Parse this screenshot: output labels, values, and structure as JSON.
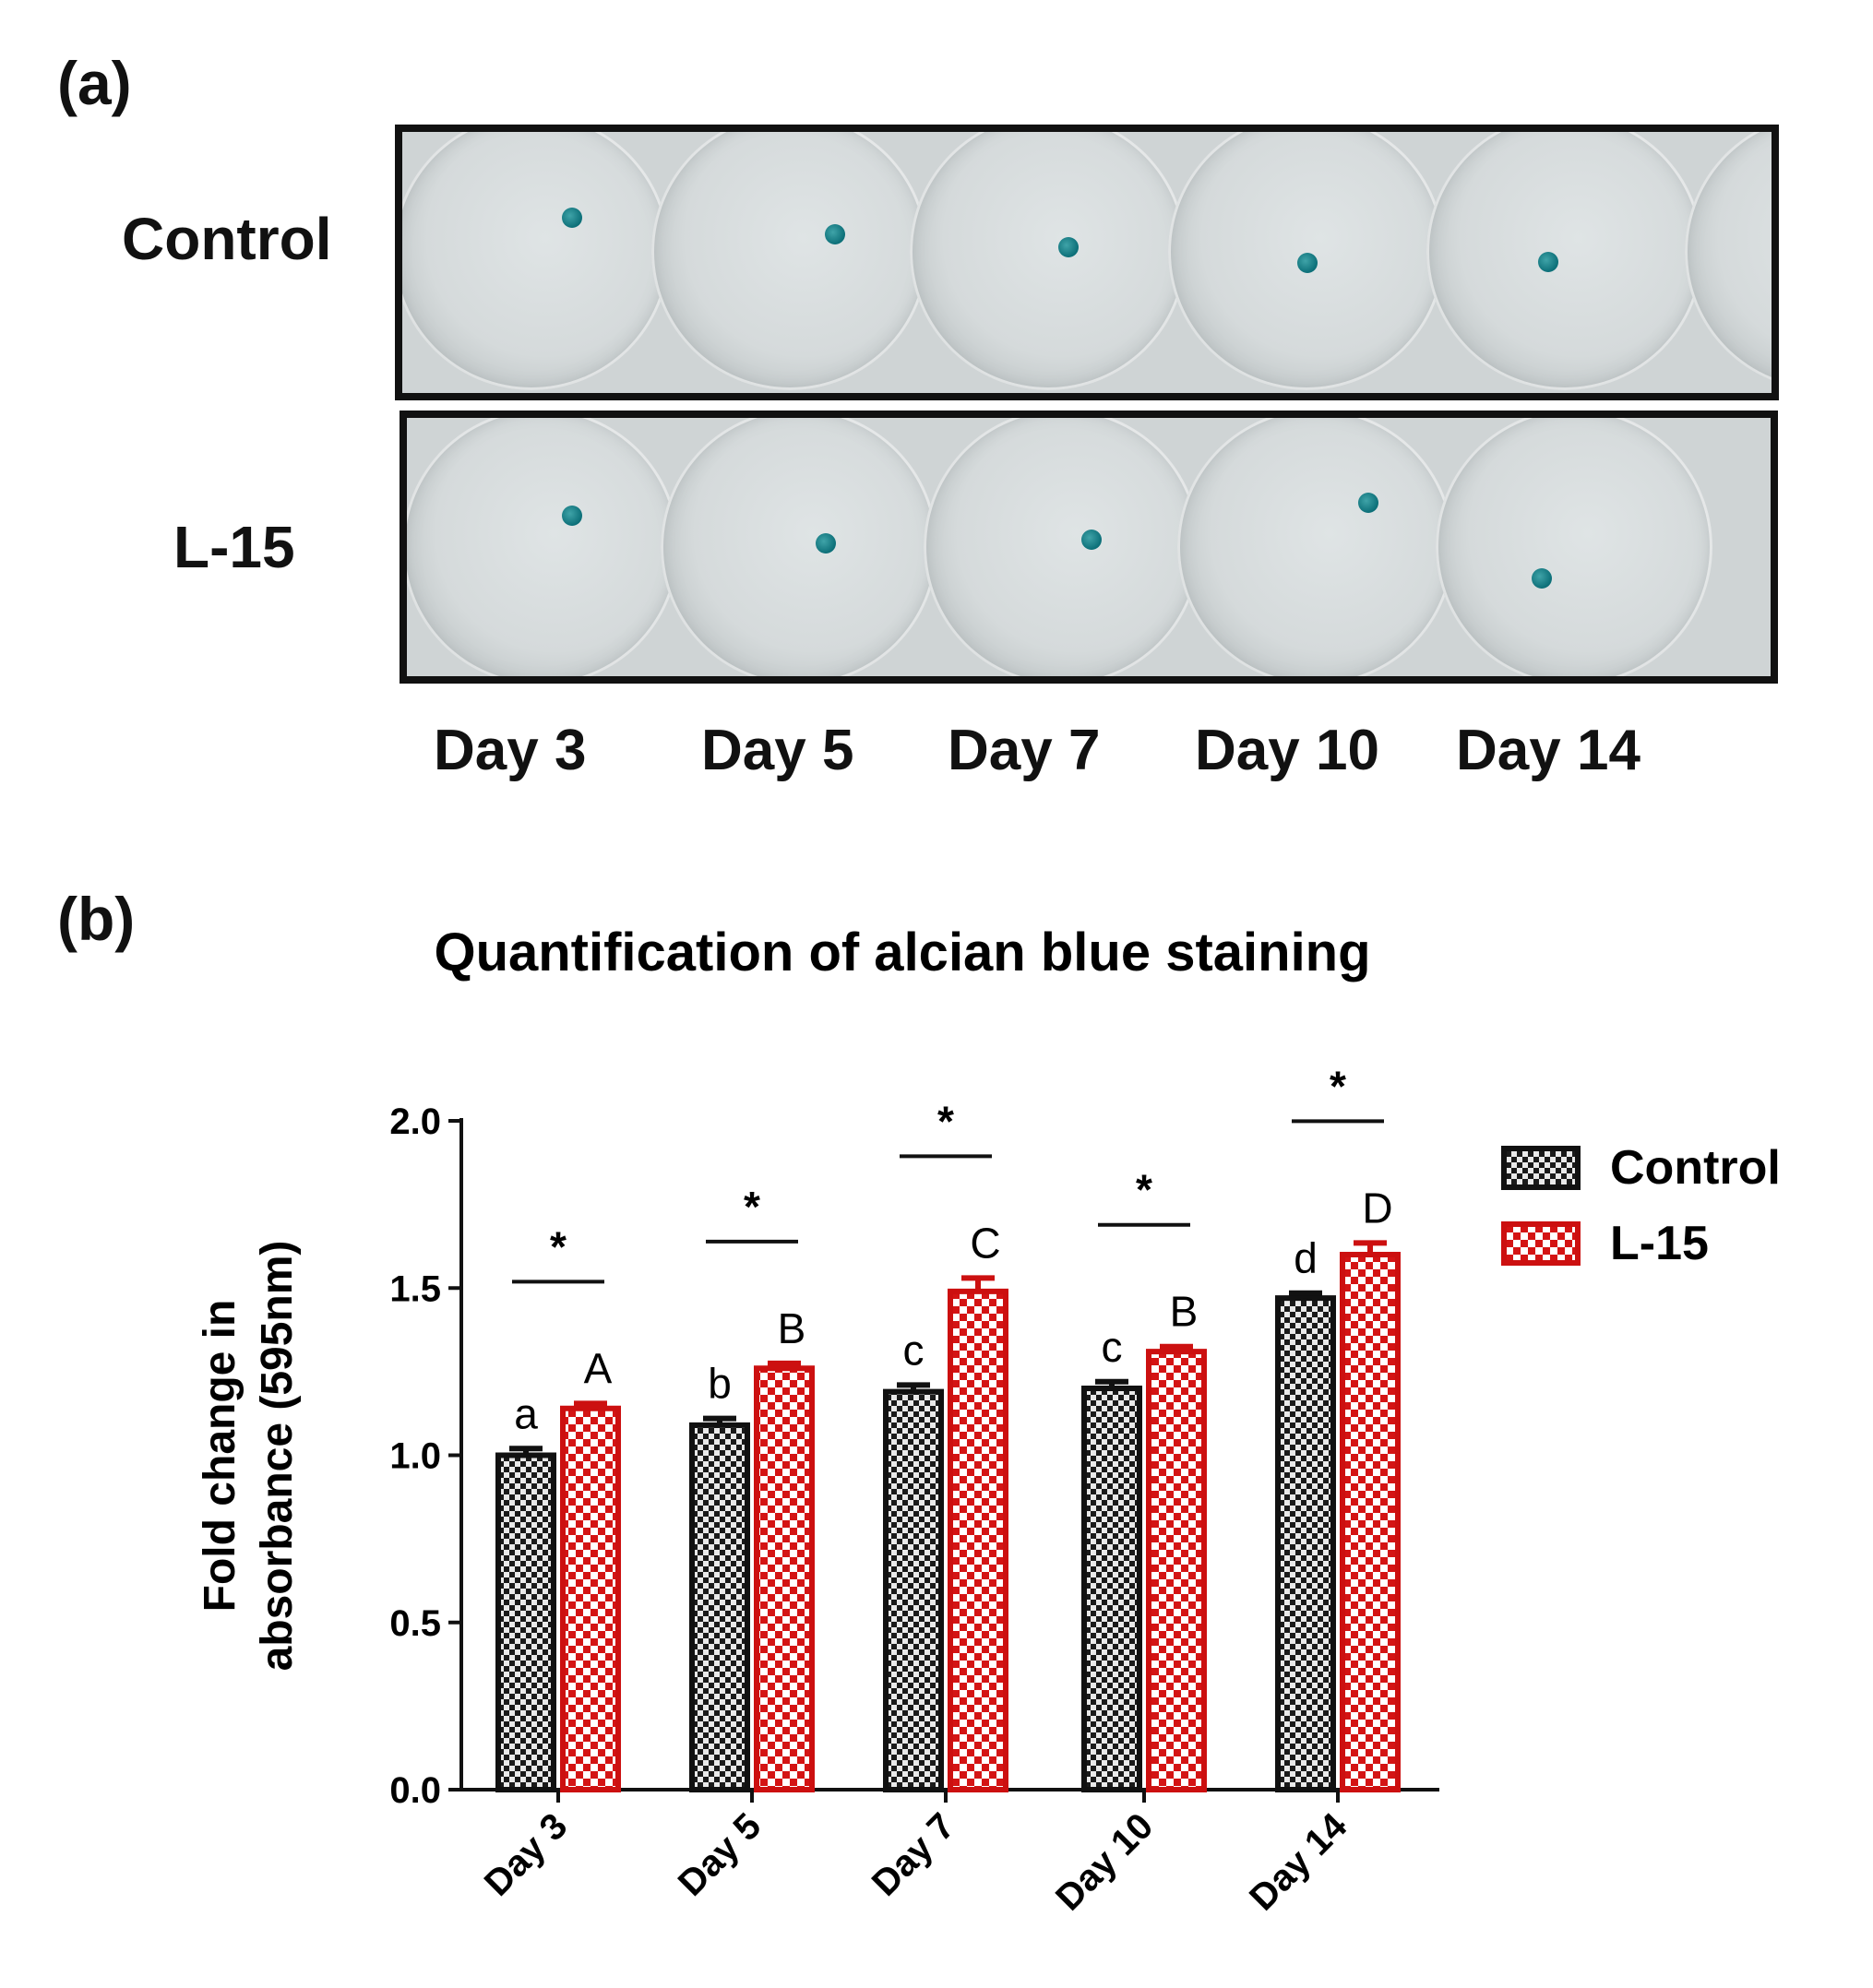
{
  "panel_a": {
    "label": "(a)",
    "rows": [
      {
        "label": "Control",
        "stains": 5
      },
      {
        "label": "L-15",
        "stains": 5
      }
    ],
    "days": [
      "Day 3",
      "Day 5",
      "Day 7",
      "Day 10",
      "Day 14"
    ],
    "stain_color": "#0c6f78"
  },
  "panel_b": {
    "label": "(b)"
  },
  "chart_data": {
    "type": "bar",
    "title": "Quantification of alcian blue staining",
    "ylabel_lines": [
      "Fold change in",
      "absorbance (595nm)"
    ],
    "xlabel": "",
    "categories": [
      "Day 3",
      "Day 5",
      "Day 7",
      "Day 10",
      "Day 14"
    ],
    "ylim": [
      0.0,
      2.0
    ],
    "yticks": [
      "0.0",
      "0.5",
      "1.0",
      "1.5",
      "2.0"
    ],
    "series": [
      {
        "name": "Control",
        "values": [
          1.0,
          1.09,
          1.19,
          1.2,
          1.47
        ],
        "errors": [
          0.02,
          0.02,
          0.02,
          0.02,
          0.015
        ],
        "letters": [
          "a",
          "b",
          "c",
          "c",
          "d"
        ],
        "color": "#111111",
        "pattern": "checker-dark"
      },
      {
        "name": "L-15",
        "values": [
          1.14,
          1.26,
          1.49,
          1.31,
          1.6
        ],
        "errors": [
          0.015,
          0.015,
          0.04,
          0.015,
          0.035
        ],
        "letters": [
          "A",
          "B",
          "C",
          "B",
          "D"
        ],
        "color": "#cc1010",
        "pattern": "checker-red"
      }
    ],
    "significance": [
      "*",
      "*",
      "*",
      "*",
      "*"
    ],
    "legend_position": "top-right"
  }
}
